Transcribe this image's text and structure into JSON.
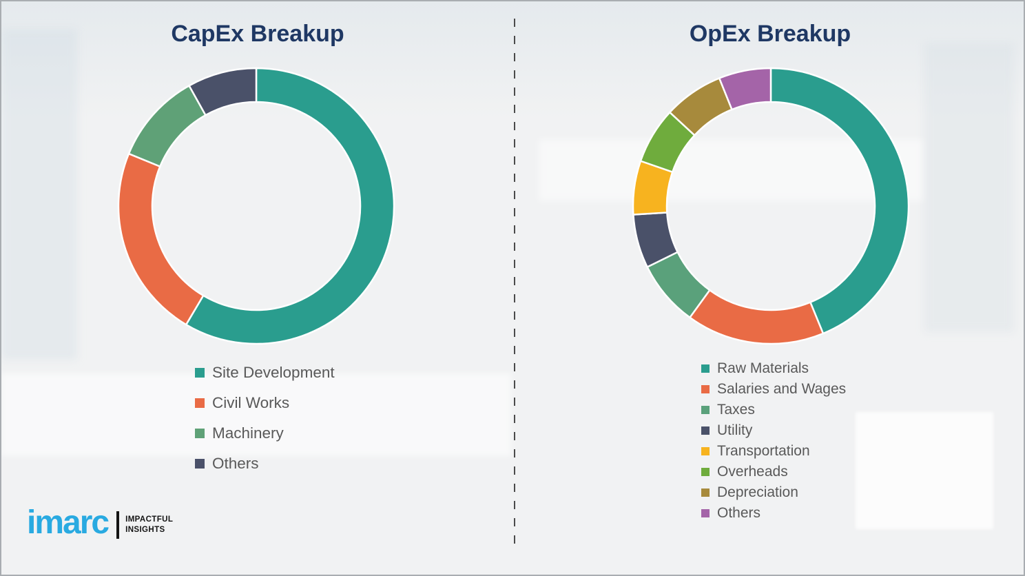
{
  "style": {
    "background_color": "#f1f2f3",
    "border_color": "#a9adb1",
    "title_color": "#1f3864",
    "legend_text_color": "#595959",
    "divider_color": "#4a4a4a",
    "logo_blue": "#29aae1",
    "logo_black": "#141414"
  },
  "chart_data": [
    {
      "type": "pie",
      "style": "donut",
      "title": "CapEx Breakup",
      "categories": [
        "Site Development",
        "Civil Works",
        "Machinery",
        "Others"
      ],
      "values": [
        58.5,
        22.7,
        10.7,
        8.1
      ],
      "values_note": "percent of ring, estimated from arc angles; no numeric labels shown",
      "colors": [
        "#2a9d8e",
        "#e96b45",
        "#5fa177",
        "#4a5169"
      ],
      "start_angle_deg": 0,
      "direction": "clockwise",
      "legend_position": "below-left"
    },
    {
      "type": "pie",
      "style": "donut",
      "title": "OpEx Breakup",
      "categories": [
        "Raw Materials",
        "Salaries and Wages",
        "Taxes",
        "Utility",
        "Transportation",
        "Overheads",
        "Depreciation",
        "Others"
      ],
      "values": [
        43.8,
        16.2,
        7.7,
        6.3,
        6.3,
        6.6,
        7.0,
        6.1
      ],
      "values_note": "percent of ring, estimated from arc angles; no numeric labels shown",
      "colors": [
        "#2a9d8e",
        "#e96b45",
        "#5aa17b",
        "#4a5169",
        "#f7b31f",
        "#6fac3d",
        "#a78a3c",
        "#a464a8"
      ],
      "start_angle_deg": 0,
      "direction": "clockwise",
      "legend_position": "below-left"
    }
  ],
  "logo": {
    "brand": "imarc",
    "tagline_line1": "IMPACTFUL",
    "tagline_line2": "INSIGHTS"
  }
}
